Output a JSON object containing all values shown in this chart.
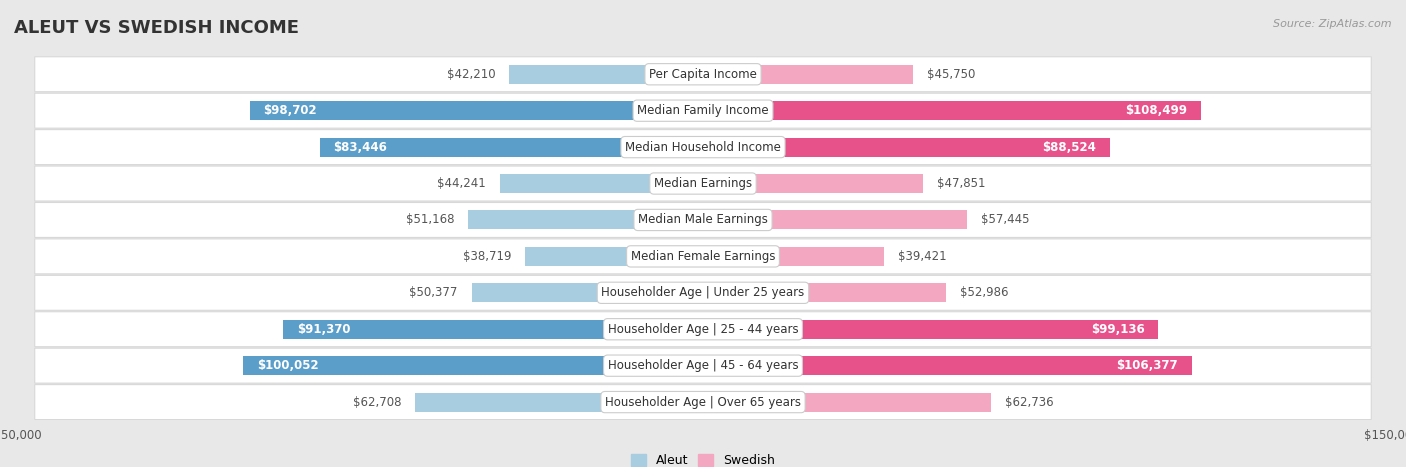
{
  "title": "ALEUT VS SWEDISH INCOME",
  "source": "Source: ZipAtlas.com",
  "categories": [
    "Per Capita Income",
    "Median Family Income",
    "Median Household Income",
    "Median Earnings",
    "Median Male Earnings",
    "Median Female Earnings",
    "Householder Age | Under 25 years",
    "Householder Age | 25 - 44 years",
    "Householder Age | 45 - 64 years",
    "Householder Age | Over 65 years"
  ],
  "aleut_values": [
    42210,
    98702,
    83446,
    44241,
    51168,
    38719,
    50377,
    91370,
    100052,
    62708
  ],
  "swedish_values": [
    45750,
    108499,
    88524,
    47851,
    57445,
    39421,
    52986,
    99136,
    106377,
    62736
  ],
  "aleut_labels": [
    "$42,210",
    "$98,702",
    "$83,446",
    "$44,241",
    "$51,168",
    "$38,719",
    "$50,377",
    "$91,370",
    "$100,052",
    "$62,708"
  ],
  "swedish_labels": [
    "$45,750",
    "$108,499",
    "$88,524",
    "$47,851",
    "$57,445",
    "$39,421",
    "$52,986",
    "$99,136",
    "$106,377",
    "$62,736"
  ],
  "aleut_color_light": "#a8cce0",
  "aleut_color_dark": "#5b9ec9",
  "swedish_color_light": "#f4a7c0",
  "swedish_color_dark": "#e8528a",
  "inside_threshold": 65000,
  "max_value": 150000,
  "row_bg_color": "#ffffff",
  "row_border_color": "#d8d8d8",
  "outer_bg_color": "#e8e8e8",
  "title_fontsize": 13,
  "source_fontsize": 8,
  "label_fontsize": 8.5,
  "value_fontsize": 8.5
}
